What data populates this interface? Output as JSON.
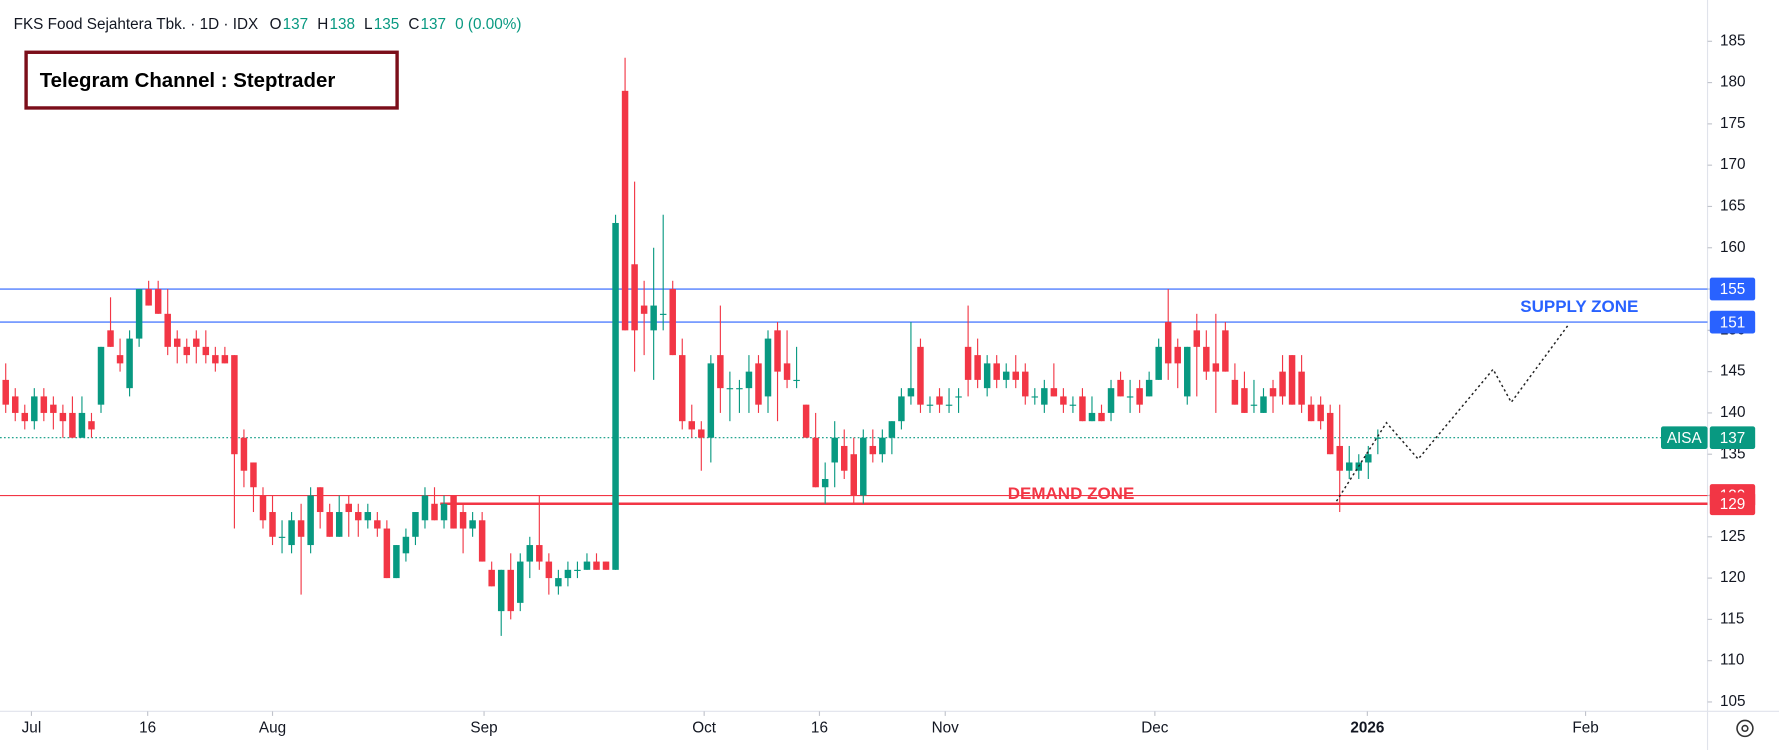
{
  "chart_data": {
    "type": "candlestick",
    "header": {
      "symbol": "FKS Food Sejahtera Tbk. · 1D · IDX",
      "ohlc_labels": [
        "O",
        "H",
        "L",
        "C"
      ],
      "ohlc_values": [
        137,
        138,
        135,
        137
      ],
      "change": "0 (0.00%)"
    },
    "annotation": "Telegram Channel : Steptrader",
    "up_color": "#089981",
    "down_color": "#f23645",
    "open": [
      144,
      142,
      140,
      139,
      142,
      141,
      140,
      140,
      137,
      139,
      141,
      150,
      147,
      143,
      149,
      155,
      155,
      152,
      149,
      148,
      149,
      148,
      147,
      147,
      147,
      137,
      134,
      130,
      128,
      125,
      124,
      127,
      124,
      131,
      128,
      125,
      129,
      128,
      127,
      127,
      126,
      120,
      123,
      125,
      127,
      129,
      127,
      130,
      128,
      126,
      127,
      121,
      116,
      121,
      117,
      122,
      124,
      122,
      119,
      120,
      121,
      121,
      122,
      122,
      121,
      179,
      158,
      153,
      150,
      152,
      155,
      147,
      139,
      138,
      137,
      147,
      143,
      143,
      143,
      146,
      142,
      150,
      146,
      144,
      141,
      137,
      131,
      134,
      136,
      135,
      130,
      136,
      135,
      137,
      139,
      142,
      148,
      141,
      142,
      141,
      142,
      148,
      147,
      143,
      146,
      144,
      145,
      145,
      142,
      141,
      143,
      142,
      141,
      142,
      139,
      140,
      140,
      144,
      142,
      143,
      142,
      144,
      151,
      148,
      142,
      150,
      148,
      146,
      150,
      144,
      143,
      141,
      140,
      143,
      145,
      147,
      145,
      141,
      141,
      140,
      136,
      133,
      133,
      134,
      137
    ],
    "high": [
      146,
      143,
      141,
      143,
      143,
      142,
      141,
      142,
      142,
      140,
      148,
      154,
      149,
      150,
      155,
      156,
      156,
      155,
      150,
      149,
      150,
      150,
      148,
      148,
      147,
      138,
      134,
      131,
      130,
      127,
      128,
      129,
      131,
      131,
      129,
      130,
      130,
      129,
      129,
      128,
      127,
      124,
      126,
      128,
      131,
      131,
      130,
      130,
      129,
      128,
      128,
      122,
      121,
      123,
      123,
      125,
      130,
      123,
      121,
      122,
      122,
      123,
      123,
      122,
      164,
      183,
      168,
      156,
      160,
      164,
      156,
      149,
      141,
      139,
      147,
      153,
      145,
      144,
      147,
      147,
      150,
      151,
      150,
      148,
      141,
      140,
      134,
      139,
      138,
      137,
      138,
      138,
      138,
      139,
      143,
      151,
      149,
      142,
      143,
      143,
      143,
      153,
      149,
      147,
      147,
      146,
      147,
      146,
      143,
      144,
      146,
      143,
      142,
      143,
      142,
      141,
      144,
      145,
      144,
      144,
      145,
      149,
      155,
      149,
      148,
      152,
      150,
      152,
      151,
      146,
      145,
      144,
      143,
      144,
      147,
      147,
      147,
      142,
      142,
      141,
      141,
      136,
      135,
      136,
      138
    ],
    "low": [
      140,
      139,
      138,
      138,
      139,
      138,
      137,
      137,
      137,
      137,
      140,
      148,
      145,
      142,
      148,
      153,
      152,
      147,
      146,
      146,
      146,
      146,
      145,
      146,
      126,
      131,
      128,
      126,
      124,
      123,
      123,
      118,
      123,
      126,
      125,
      125,
      125,
      125,
      126,
      125,
      120,
      120,
      122,
      124,
      126,
      127,
      126,
      126,
      123,
      125,
      122,
      119,
      113,
      115,
      116,
      120,
      121,
      118,
      118,
      119,
      120,
      121,
      121,
      121,
      121,
      150,
      145,
      147,
      144,
      150,
      147,
      138,
      137,
      133,
      134,
      140,
      139,
      140,
      140,
      140,
      140,
      139,
      143,
      143,
      137,
      131,
      129,
      131,
      132,
      129,
      129,
      134,
      134,
      135,
      138,
      141,
      140,
      140,
      140,
      140,
      140,
      142,
      143,
      142,
      143,
      143,
      143,
      141,
      141,
      140,
      142,
      140,
      140,
      139,
      139,
      139,
      139,
      142,
      140,
      140,
      142,
      144,
      144,
      143,
      141,
      142,
      144,
      140,
      145,
      141,
      140,
      140,
      140,
      140,
      141,
      141,
      140,
      139,
      138,
      135,
      128,
      132,
      132,
      132,
      135
    ],
    "close": [
      141,
      140,
      139,
      142,
      140,
      140,
      139,
      137,
      140,
      138,
      148,
      148,
      146,
      149,
      155,
      153,
      152,
      148,
      148,
      147,
      148,
      147,
      146,
      146,
      135,
      133,
      131,
      127,
      125,
      125,
      127,
      125,
      130,
      128,
      125,
      128,
      128,
      127,
      128,
      126,
      120,
      124,
      125,
      128,
      130,
      127,
      129,
      126,
      126,
      127,
      122,
      119,
      121,
      116,
      122,
      124,
      122,
      120,
      120,
      121,
      121,
      122,
      121,
      121,
      163,
      150,
      150,
      152,
      153,
      152,
      147,
      139,
      138,
      137,
      146,
      143,
      143,
      143,
      145,
      141,
      149,
      145,
      144,
      144,
      137,
      131,
      132,
      137,
      133,
      130,
      137,
      135,
      137,
      139,
      142,
      143,
      141,
      141,
      141,
      141,
      142,
      144,
      144,
      146,
      144,
      145,
      144,
      142,
      142,
      143,
      142,
      141,
      141,
      139,
      140,
      139,
      143,
      142,
      142,
      141,
      144,
      148,
      146,
      146,
      148,
      148,
      145,
      145,
      145,
      141,
      140,
      141,
      142,
      142,
      142,
      141,
      141,
      139,
      139,
      135,
      133,
      134,
      134,
      135,
      137
    ],
    "ylim": [
      104,
      190
    ],
    "yticks": [
      105,
      110,
      115,
      120,
      125,
      130,
      135,
      140,
      145,
      150,
      155,
      160,
      165,
      170,
      175,
      180,
      185
    ],
    "xlim": [
      -0.6,
      178.6
    ],
    "xticks": [
      {
        "value": 2.7,
        "label": "Jul"
      },
      {
        "value": 14.9,
        "label": "16"
      },
      {
        "value": 28,
        "label": "Aug"
      },
      {
        "value": 50.2,
        "label": "Sep"
      },
      {
        "value": 73.3,
        "label": "Oct"
      },
      {
        "value": 85.4,
        "label": "16"
      },
      {
        "value": 98.6,
        "label": "Nov"
      },
      {
        "value": 120.6,
        "label": "Dec"
      },
      {
        "value": 142.9,
        "label": "2026"
      },
      {
        "value": 165.8,
        "label": "Feb"
      }
    ],
    "levels": [
      {
        "value": 155,
        "color": "#2962ff"
      },
      {
        "value": 151,
        "color": "#2962ff"
      },
      {
        "value": 130,
        "color": "#f23645"
      },
      {
        "value": 129,
        "color": "#f23645"
      }
    ],
    "zones": [
      {
        "label": "SUPPLY ZONE",
        "color": "#2962ff"
      },
      {
        "label": "DEMAND ZONE",
        "color": "#f23645"
      }
    ],
    "last_price": {
      "symbol": "AISA",
      "value": 137
    }
  }
}
